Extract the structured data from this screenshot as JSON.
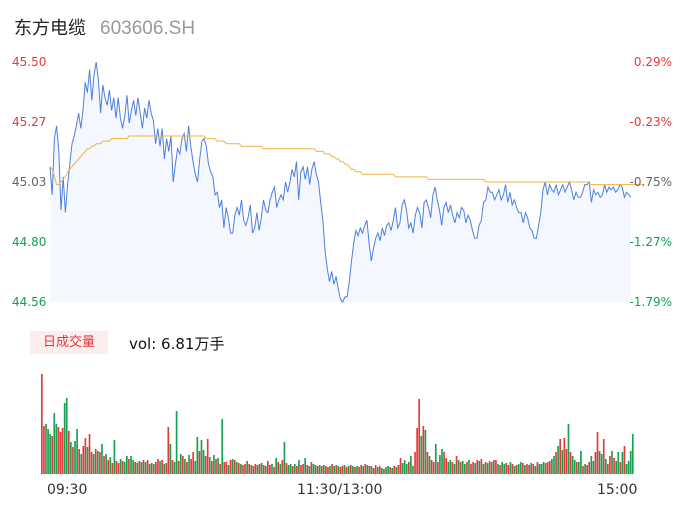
{
  "header": {
    "name": "东方电缆",
    "code": "603606.SH"
  },
  "colors": {
    "up": "#e23a3a",
    "down": "#16a050",
    "neutral": "#666666",
    "price_line": "#4d7fe0",
    "avg_line": "#f0b43c",
    "area_fill": "#f4f7fd"
  },
  "volume_tab": {
    "label": "日成交量"
  },
  "volume_text": "vol: 6.81万手",
  "chart_data": [
    {
      "type": "line",
      "y_ticks": [
        "45.50",
        "45.27",
        "45.03",
        "44.80",
        "44.56"
      ],
      "pct_ticks": [
        "0.29%",
        "-0.23%",
        "-0.75%",
        "-1.27%",
        "-1.79%"
      ],
      "ylim": [
        44.56,
        45.5
      ],
      "x_ticks": [
        "09:30",
        "11:30/13:00",
        "15:00"
      ],
      "series": [
        {
          "role": "price",
          "values": [
            45.09,
            44.98,
            45.2,
            45.25,
            45.15,
            44.92,
            45.05,
            44.91,
            45.02,
            45.1,
            45.18,
            45.21,
            45.25,
            45.3,
            45.24,
            45.31,
            45.42,
            45.38,
            45.47,
            45.35,
            45.45,
            45.5,
            45.43,
            45.3,
            45.41,
            45.36,
            45.33,
            45.39,
            45.31,
            45.36,
            45.28,
            45.36,
            45.28,
            45.24,
            45.29,
            45.37,
            45.26,
            45.31,
            45.35,
            45.29,
            45.36,
            45.3,
            45.24,
            45.32,
            45.28,
            45.35,
            45.3,
            45.27,
            45.18,
            45.24,
            45.17,
            45.24,
            45.12,
            45.2,
            45.15,
            45.21,
            45.03,
            45.1,
            45.16,
            45.14,
            45.2,
            45.22,
            45.15,
            45.25,
            45.17,
            45.11,
            45.06,
            45.03,
            45.12,
            45.19,
            45.2,
            45.17,
            45.1,
            45.07,
            45.05,
            44.98,
            44.99,
            44.93,
            44.96,
            44.85,
            44.93,
            44.89,
            44.83,
            44.83,
            44.9,
            44.93,
            44.9,
            44.96,
            44.88,
            44.86,
            44.89,
            44.94,
            44.83,
            44.85,
            44.91,
            44.84,
            44.89,
            44.96,
            44.92,
            44.91,
            44.96,
            44.99,
            45.01,
            44.93,
            44.96,
            44.98,
            44.96,
            45.03,
            44.99,
            45.03,
            45.08,
            45.05,
            45.11,
            44.96,
            45.07,
            45.09,
            45.04,
            45.09,
            45.02,
            45.08,
            45.11,
            45.06,
            45.03,
            44.95,
            44.88,
            44.76,
            44.69,
            44.64,
            44.68,
            44.63,
            44.66,
            44.61,
            44.57,
            44.56,
            44.58,
            44.58,
            44.64,
            44.72,
            44.79,
            44.84,
            44.82,
            44.85,
            44.83,
            44.86,
            44.88,
            44.79,
            44.72,
            44.77,
            44.81,
            44.83,
            44.8,
            44.85,
            44.82,
            44.86,
            44.87,
            44.84,
            44.88,
            44.93,
            44.85,
            44.87,
            44.94,
            44.96,
            44.92,
            44.85,
            44.87,
            44.83,
            44.9,
            44.93,
            44.91,
            44.85,
            44.95,
            44.96,
            44.93,
            44.89,
            44.98,
            45.01,
            44.96,
            44.92,
            44.86,
            44.93,
            44.95,
            44.91,
            44.94,
            44.9,
            44.87,
            44.91,
            44.89,
            44.93,
            44.92,
            44.87,
            44.9,
            44.88,
            44.84,
            44.81,
            44.81,
            44.86,
            44.88,
            44.95,
            44.96,
            45.01,
            44.99,
            44.99,
            44.96,
            44.98,
            45.0,
            44.96,
            44.98,
            45.02,
            44.95,
            44.99,
            44.94,
            44.96,
            44.93,
            44.91,
            44.91,
            44.87,
            44.91,
            44.89,
            44.85,
            44.84,
            44.81,
            44.81,
            44.86,
            44.91,
            45.0,
            45.03,
            44.98,
            45.02,
            45.0,
            44.99,
            45.02,
            44.98,
            45.0,
            45.02,
            44.99,
            45.01,
            45.03,
            45.0,
            44.96,
            44.99,
            44.97,
            44.97,
            44.99,
            45.02,
            45.02,
            45.03,
            44.95,
            45.0,
            44.98,
            44.99,
            44.97,
            44.98,
            45.02,
            44.99,
            45.01,
            45.0,
            45.01,
            44.99,
            45.0,
            45.02,
            45.01,
            44.97,
            44.99,
            44.98,
            44.97
          ]
        },
        {
          "role": "average",
          "values": [
            45.09,
            45.08,
            45.05,
            45.02,
            45.02,
            45.03,
            45.04,
            45.05,
            45.07,
            45.08,
            45.09,
            45.1,
            45.11,
            45.12,
            45.13,
            45.14,
            45.15,
            45.16,
            45.16,
            45.17,
            45.17,
            45.18,
            45.18,
            45.18,
            45.19,
            45.19,
            45.19,
            45.19,
            45.2,
            45.2,
            45.2,
            45.2,
            45.2,
            45.2,
            45.2,
            45.2,
            45.21,
            45.21,
            45.21,
            45.21,
            45.21,
            45.21,
            45.21,
            45.21,
            45.21,
            45.21,
            45.21,
            45.21,
            45.21,
            45.21,
            45.21,
            45.21,
            45.21,
            45.21,
            45.21,
            45.21,
            45.21,
            45.21,
            45.21,
            45.21,
            45.21,
            45.21,
            45.21,
            45.21,
            45.21,
            45.21,
            45.21,
            45.21,
            45.21,
            45.21,
            45.21,
            45.2,
            45.2,
            45.2,
            45.2,
            45.2,
            45.19,
            45.19,
            45.19,
            45.19,
            45.18,
            45.18,
            45.18,
            45.18,
            45.18,
            45.18,
            45.18,
            45.17,
            45.17,
            45.17,
            45.17,
            45.17,
            45.17,
            45.17,
            45.17,
            45.17,
            45.17,
            45.16,
            45.16,
            45.16,
            45.16,
            45.16,
            45.16,
            45.16,
            45.16,
            45.16,
            45.16,
            45.16,
            45.16,
            45.16,
            45.16,
            45.16,
            45.16,
            45.16,
            45.16,
            45.16,
            45.16,
            45.16,
            45.16,
            45.16,
            45.16,
            45.15,
            45.15,
            45.15,
            45.15,
            45.14,
            45.14,
            45.14,
            45.13,
            45.13,
            45.12,
            45.12,
            45.11,
            45.11,
            45.1,
            45.1,
            45.09,
            45.08,
            45.08,
            45.07,
            45.07,
            45.07,
            45.06,
            45.06,
            45.06,
            45.06,
            45.06,
            45.06,
            45.06,
            45.06,
            45.06,
            45.06,
            45.06,
            45.06,
            45.06,
            45.06,
            45.06,
            45.05,
            45.05,
            45.05,
            45.05,
            45.05,
            45.05,
            45.05,
            45.05,
            45.05,
            45.05,
            45.05,
            45.05,
            45.05,
            45.05,
            45.05,
            45.04,
            45.04,
            45.04,
            45.04,
            45.04,
            45.04,
            45.04,
            45.04,
            45.04,
            45.04,
            45.04,
            45.04,
            45.04,
            45.04,
            45.04,
            45.04,
            45.04,
            45.04,
            45.04,
            45.04,
            45.04,
            45.04,
            45.04,
            45.04,
            45.04,
            45.04,
            45.03,
            45.03,
            45.03,
            45.03,
            45.03,
            45.03,
            45.03,
            45.03,
            45.03,
            45.03,
            45.03,
            45.03,
            45.03,
            45.03,
            45.03,
            45.03,
            45.03,
            45.03,
            45.03,
            45.03,
            45.03,
            45.03,
            45.03,
            45.03,
            45.03,
            45.03,
            45.03,
            45.03,
            45.03,
            45.03,
            45.03,
            45.03,
            45.03,
            45.03,
            45.03,
            45.03,
            45.03,
            45.03,
            45.03,
            45.03,
            45.03,
            45.03,
            45.03,
            45.03,
            45.03,
            45.03,
            45.03,
            45.02,
            45.02,
            45.02,
            45.02,
            45.02,
            45.02,
            45.02,
            45.02,
            45.02,
            45.02,
            45.02,
            45.02,
            45.02,
            45.02,
            45.02,
            45.02,
            45.02,
            45.02,
            45.02,
            45.02,
            45.02,
            45.02,
            45.02,
            45.02,
            45.02,
            45.02
          ]
        }
      ]
    },
    {
      "type": "bar",
      "role": "volume",
      "values": [
        1.0,
        0.48,
        0.5,
        0.45,
        0.4,
        0.38,
        0.61,
        0.5,
        0.47,
        0.42,
        0.46,
        0.71,
        0.76,
        0.43,
        0.32,
        0.27,
        0.33,
        0.45,
        0.25,
        0.2,
        0.28,
        0.36,
        0.27,
        0.4,
        0.22,
        0.2,
        0.25,
        0.23,
        0.22,
        0.3,
        0.18,
        0.2,
        0.14,
        0.17,
        0.11,
        0.34,
        0.13,
        0.11,
        0.15,
        0.13,
        0.12,
        0.18,
        0.15,
        0.18,
        0.14,
        0.12,
        0.11,
        0.13,
        0.12,
        0.14,
        0.12,
        0.14,
        0.1,
        0.11,
        0.1,
        0.12,
        0.15,
        0.13,
        0.14,
        0.1,
        0.11,
        0.47,
        0.3,
        0.14,
        0.12,
        0.63,
        0.13,
        0.2,
        0.18,
        0.15,
        0.12,
        0.19,
        0.15,
        0.22,
        0.13,
        0.37,
        0.23,
        0.34,
        0.24,
        0.18,
        0.35,
        0.17,
        0.13,
        0.19,
        0.15,
        0.16,
        0.1,
        0.55,
        0.12,
        0.12,
        0.09,
        0.14,
        0.15,
        0.14,
        0.12,
        0.11,
        0.1,
        0.09,
        0.1,
        0.13,
        0.1,
        0.09,
        0.08,
        0.1,
        0.09,
        0.1,
        0.11,
        0.09,
        0.08,
        0.13,
        0.09,
        0.1,
        0.07,
        0.16,
        0.12,
        0.1,
        0.14,
        0.32,
        0.11,
        0.09,
        0.1,
        0.08,
        0.1,
        0.08,
        0.14,
        0.09,
        0.1,
        0.16,
        0.09,
        0.08,
        0.12,
        0.1,
        0.09,
        0.08,
        0.09,
        0.08,
        0.09,
        0.08,
        0.07,
        0.08,
        0.1,
        0.08,
        0.09,
        0.08,
        0.07,
        0.08,
        0.09,
        0.07,
        0.08,
        0.09,
        0.08,
        0.07,
        0.08,
        0.07,
        0.09,
        0.08,
        0.1,
        0.09,
        0.08,
        0.08,
        0.06,
        0.09,
        0.07,
        0.08,
        0.06,
        0.05,
        0.07,
        0.08,
        0.07,
        0.06,
        0.08,
        0.07,
        0.09,
        0.16,
        0.11,
        0.14,
        0.1,
        0.12,
        0.18,
        0.08,
        0.22,
        0.46,
        0.75,
        0.38,
        0.48,
        0.44,
        0.22,
        0.18,
        0.14,
        0.12,
        0.3,
        0.12,
        0.19,
        0.25,
        0.22,
        0.16,
        0.12,
        0.14,
        0.12,
        0.1,
        0.18,
        0.14,
        0.12,
        0.13,
        0.1,
        0.12,
        0.14,
        0.1,
        0.12,
        0.11,
        0.14,
        0.13,
        0.15,
        0.1,
        0.12,
        0.11,
        0.13,
        0.12,
        0.14,
        0.14,
        0.1,
        0.09,
        0.12,
        0.1,
        0.11,
        0.09,
        0.12,
        0.1,
        0.08,
        0.09,
        0.1,
        0.12,
        0.11,
        0.09,
        0.1,
        0.09,
        0.11,
        0.1,
        0.08,
        0.12,
        0.1,
        0.1,
        0.12,
        0.11,
        0.12,
        0.13,
        0.15,
        0.18,
        0.22,
        0.28,
        0.35,
        0.24,
        0.36,
        0.25,
        0.5,
        0.22,
        0.18,
        0.14,
        0.12,
        0.12,
        0.23,
        0.08,
        0.1,
        0.09,
        0.12,
        0.18,
        0.13,
        0.22,
        0.42,
        0.23,
        0.2,
        0.35,
        0.15,
        0.1,
        0.18,
        0.23,
        0.16,
        0.13,
        0.22,
        0.12,
        0.22,
        0.28,
        0.1,
        0.13,
        0.23,
        0.4
      ],
      "directions": [
        1,
        1,
        0,
        0,
        0,
        1,
        0,
        0,
        1,
        1,
        1,
        0,
        0,
        1,
        0,
        1,
        0,
        0,
        1,
        0,
        1,
        1,
        0,
        1,
        1,
        0,
        1,
        0,
        1,
        0,
        1,
        0,
        1,
        0,
        1,
        0,
        1,
        1,
        0,
        1,
        0,
        0,
        1,
        0,
        0,
        1,
        0,
        1,
        0,
        1,
        0,
        1,
        0,
        1,
        0,
        1,
        1,
        0,
        1,
        0,
        1,
        1,
        0,
        1,
        0,
        0,
        1,
        0,
        1,
        0,
        1,
        0,
        1,
        1,
        0,
        0,
        1,
        0,
        0,
        1,
        1,
        0,
        1,
        0,
        1,
        0,
        1,
        0,
        1,
        1,
        0,
        1,
        0,
        1,
        0,
        1,
        0,
        1,
        1,
        0,
        1,
        0,
        1,
        1,
        0,
        1,
        0,
        1,
        0,
        1,
        1,
        0,
        1,
        0,
        1,
        0,
        1,
        0,
        1,
        0,
        0,
        1,
        0,
        1,
        0,
        1,
        1,
        0,
        1,
        0,
        1,
        0,
        0,
        1,
        0,
        1,
        0,
        1,
        1,
        0,
        1,
        0,
        1,
        0,
        1,
        1,
        0,
        1,
        0,
        1,
        0,
        1,
        0,
        1,
        1,
        0,
        1,
        0,
        1,
        0,
        1,
        1,
        0,
        1,
        0,
        1,
        0,
        0,
        1,
        0,
        1,
        0,
        1,
        1,
        0,
        0,
        0,
        1,
        0,
        0,
        1,
        1,
        1,
        0,
        1,
        0,
        1,
        0,
        1,
        1,
        0,
        1,
        0,
        0,
        1,
        1,
        0,
        0,
        1,
        0,
        1,
        0,
        1,
        0,
        0,
        1,
        0,
        1,
        1,
        0,
        1,
        0,
        1,
        0,
        1,
        0,
        1,
        0,
        1,
        1,
        0,
        1,
        0,
        0,
        1,
        1,
        0,
        1,
        0,
        1,
        0,
        0,
        1,
        0,
        1,
        1,
        0,
        1,
        0,
        1,
        0,
        0,
        0,
        1,
        1,
        1,
        0,
        0,
        1,
        0,
        1,
        0,
        1,
        1,
        0,
        1,
        0,
        0,
        1,
        0,
        0,
        1,
        0,
        1,
        1,
        0,
        0,
        1,
        1,
        0,
        0,
        1,
        0,
        1,
        1,
        0,
        1,
        0,
        0,
        1,
        0,
        1
      ]
    }
  ]
}
